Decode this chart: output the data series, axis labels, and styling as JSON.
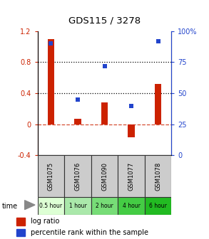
{
  "title": "GDS115 / 3278",
  "samples": [
    "GSM1075",
    "GSM1076",
    "GSM1090",
    "GSM1077",
    "GSM1078"
  ],
  "time_labels": [
    "0.5 hour",
    "1 hour",
    "2 hour",
    "4 hour",
    "6 hour"
  ],
  "time_colors": [
    "#ddffd4",
    "#aae8aa",
    "#77dd77",
    "#44cc44",
    "#22bb22"
  ],
  "log_ratio": [
    1.1,
    0.07,
    0.28,
    -0.17,
    0.52
  ],
  "percentile": [
    90,
    45,
    72,
    40,
    92
  ],
  "bar_color": "#cc2200",
  "dot_color": "#2244cc",
  "ylim_left": [
    -0.4,
    1.2
  ],
  "ylim_right": [
    0,
    100
  ],
  "yticks_left": [
    -0.4,
    0.0,
    0.4,
    0.8,
    1.2
  ],
  "ytick_labels_left": [
    "-0.4",
    "0",
    "0.4",
    "0.8",
    "1.2"
  ],
  "yticks_right": [
    0,
    25,
    50,
    75,
    100
  ],
  "ytick_labels_right": [
    "0",
    "25",
    "50",
    "75",
    "100%"
  ],
  "hlines_dotted": [
    0.4,
    0.8
  ],
  "hline_zero": 0.0,
  "bar_width": 0.25
}
